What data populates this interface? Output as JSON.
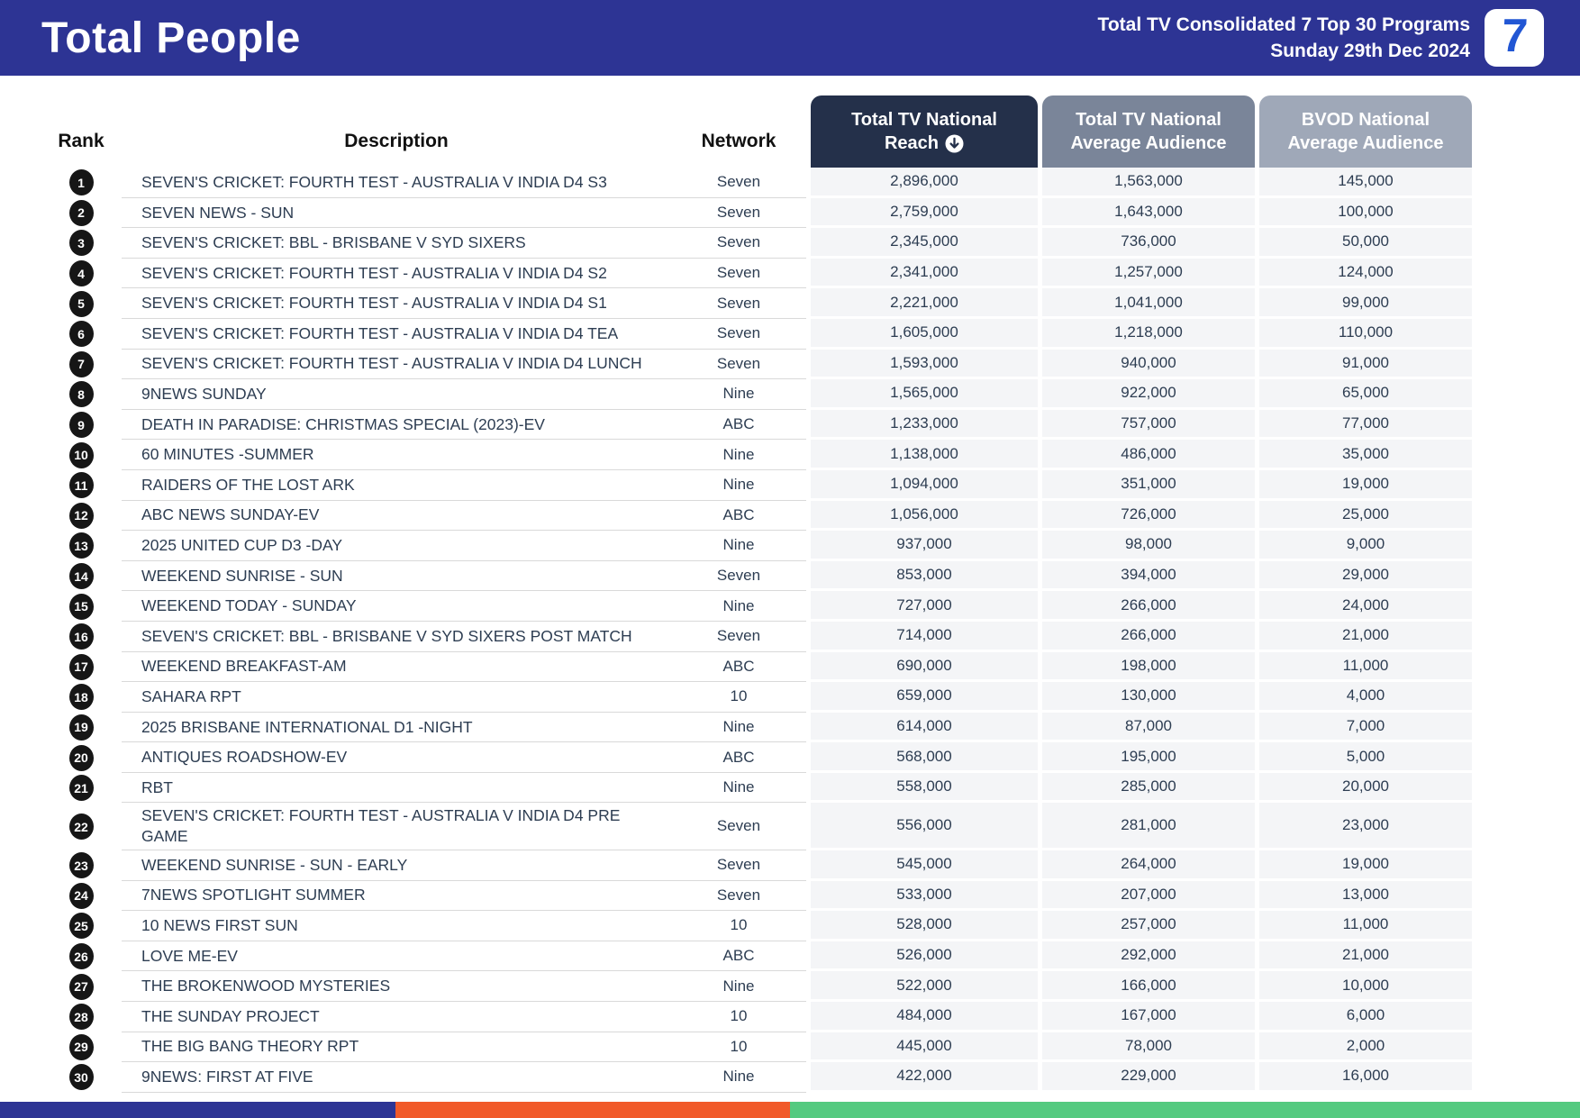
{
  "header": {
    "title": "Total People",
    "report_line1": "Total TV Consolidated 7 Top 30 Programs",
    "report_line2": "Sunday 29th Dec 2024",
    "logo_text": "7"
  },
  "colors": {
    "topbar": "#2d3494",
    "reach_header_bg": "#24304a",
    "tv_avg_header_bg": "#7a8599",
    "bvod_header_bg": "#9fa8b8",
    "row_text": "#2d3d52",
    "numeric_cell_bg": "#f4f5f7",
    "rank_badge_bg": "#161616",
    "logo_seven_blue": "#2156d4"
  },
  "table": {
    "plain_headers": {
      "rank": "Rank",
      "description": "Description",
      "network": "Network"
    },
    "value_headers": {
      "reach": {
        "line1": "Total TV National",
        "line2": "Reach",
        "sorted": "descending"
      },
      "tv_avg": {
        "line1": "Total TV National",
        "line2": "Average Audience"
      },
      "bvod": {
        "line1": "BVOD National",
        "line2": "Average Audience"
      }
    },
    "rows": [
      {
        "rank": "1",
        "description": "SEVEN'S CRICKET: FOURTH TEST - AUSTRALIA V INDIA D4 S3",
        "network": "Seven",
        "reach": "2,896,000",
        "tv_avg": "1,563,000",
        "bvod": "145,000"
      },
      {
        "rank": "2",
        "description": "SEVEN NEWS - SUN",
        "network": "Seven",
        "reach": "2,759,000",
        "tv_avg": "1,643,000",
        "bvod": "100,000"
      },
      {
        "rank": "3",
        "description": "SEVEN'S CRICKET: BBL - BRISBANE V SYD SIXERS",
        "network": "Seven",
        "reach": "2,345,000",
        "tv_avg": "736,000",
        "bvod": "50,000"
      },
      {
        "rank": "4",
        "description": "SEVEN'S CRICKET: FOURTH TEST - AUSTRALIA V INDIA D4 S2",
        "network": "Seven",
        "reach": "2,341,000",
        "tv_avg": "1,257,000",
        "bvod": "124,000"
      },
      {
        "rank": "5",
        "description": "SEVEN'S CRICKET: FOURTH TEST - AUSTRALIA V INDIA D4 S1",
        "network": "Seven",
        "reach": "2,221,000",
        "tv_avg": "1,041,000",
        "bvod": "99,000"
      },
      {
        "rank": "6",
        "description": "SEVEN'S CRICKET: FOURTH TEST - AUSTRALIA V INDIA D4 TEA",
        "network": "Seven",
        "reach": "1,605,000",
        "tv_avg": "1,218,000",
        "bvod": "110,000"
      },
      {
        "rank": "7",
        "description": "SEVEN'S CRICKET: FOURTH TEST - AUSTRALIA V INDIA D4 LUNCH",
        "network": "Seven",
        "reach": "1,593,000",
        "tv_avg": "940,000",
        "bvod": "91,000"
      },
      {
        "rank": "8",
        "description": "9NEWS SUNDAY",
        "network": "Nine",
        "reach": "1,565,000",
        "tv_avg": "922,000",
        "bvod": "65,000"
      },
      {
        "rank": "9",
        "description": "DEATH IN PARADISE: CHRISTMAS SPECIAL (2023)-EV",
        "network": "ABC",
        "reach": "1,233,000",
        "tv_avg": "757,000",
        "bvod": "77,000"
      },
      {
        "rank": "10",
        "description": "60 MINUTES -SUMMER",
        "network": "Nine",
        "reach": "1,138,000",
        "tv_avg": "486,000",
        "bvod": "35,000"
      },
      {
        "rank": "11",
        "description": "RAIDERS OF THE LOST ARK",
        "network": "Nine",
        "reach": "1,094,000",
        "tv_avg": "351,000",
        "bvod": "19,000"
      },
      {
        "rank": "12",
        "description": "ABC NEWS SUNDAY-EV",
        "network": "ABC",
        "reach": "1,056,000",
        "tv_avg": "726,000",
        "bvod": "25,000"
      },
      {
        "rank": "13",
        "description": "2025 UNITED CUP D3 -DAY",
        "network": "Nine",
        "reach": "937,000",
        "tv_avg": "98,000",
        "bvod": "9,000"
      },
      {
        "rank": "14",
        "description": "WEEKEND SUNRISE - SUN",
        "network": "Seven",
        "reach": "853,000",
        "tv_avg": "394,000",
        "bvod": "29,000"
      },
      {
        "rank": "15",
        "description": "WEEKEND TODAY - SUNDAY",
        "network": "Nine",
        "reach": "727,000",
        "tv_avg": "266,000",
        "bvod": "24,000"
      },
      {
        "rank": "16",
        "description": "SEVEN'S CRICKET: BBL - BRISBANE V SYD SIXERS POST MATCH",
        "network": "Seven",
        "reach": "714,000",
        "tv_avg": "266,000",
        "bvod": "21,000"
      },
      {
        "rank": "17",
        "description": "WEEKEND BREAKFAST-AM",
        "network": "ABC",
        "reach": "690,000",
        "tv_avg": "198,000",
        "bvod": "11,000"
      },
      {
        "rank": "18",
        "description": "SAHARA RPT",
        "network": "10",
        "reach": "659,000",
        "tv_avg": "130,000",
        "bvod": "4,000"
      },
      {
        "rank": "19",
        "description": "2025 BRISBANE INTERNATIONAL D1 -NIGHT",
        "network": "Nine",
        "reach": "614,000",
        "tv_avg": "87,000",
        "bvod": "7,000"
      },
      {
        "rank": "20",
        "description": "ANTIQUES ROADSHOW-EV",
        "network": "ABC",
        "reach": "568,000",
        "tv_avg": "195,000",
        "bvod": "5,000"
      },
      {
        "rank": "21",
        "description": "RBT",
        "network": "Nine",
        "reach": "558,000",
        "tv_avg": "285,000",
        "bvod": "20,000"
      },
      {
        "rank": "22",
        "description": "SEVEN'S CRICKET: FOURTH TEST - AUSTRALIA V INDIA D4 PRE GAME",
        "network": "Seven",
        "reach": "556,000",
        "tv_avg": "281,000",
        "bvod": "23,000"
      },
      {
        "rank": "23",
        "description": "WEEKEND SUNRISE - SUN - EARLY",
        "network": "Seven",
        "reach": "545,000",
        "tv_avg": "264,000",
        "bvod": "19,000"
      },
      {
        "rank": "24",
        "description": "7NEWS SPOTLIGHT SUMMER",
        "network": "Seven",
        "reach": "533,000",
        "tv_avg": "207,000",
        "bvod": "13,000"
      },
      {
        "rank": "25",
        "description": "10 NEWS FIRST SUN",
        "network": "10",
        "reach": "528,000",
        "tv_avg": "257,000",
        "bvod": "11,000"
      },
      {
        "rank": "26",
        "description": "LOVE ME-EV",
        "network": "ABC",
        "reach": "526,000",
        "tv_avg": "292,000",
        "bvod": "21,000"
      },
      {
        "rank": "27",
        "description": "THE BROKENWOOD MYSTERIES",
        "network": "Nine",
        "reach": "522,000",
        "tv_avg": "166,000",
        "bvod": "10,000"
      },
      {
        "rank": "28",
        "description": "THE SUNDAY PROJECT",
        "network": "10",
        "reach": "484,000",
        "tv_avg": "167,000",
        "bvod": "6,000"
      },
      {
        "rank": "29",
        "description": "THE BIG BANG THEORY RPT",
        "network": "10",
        "reach": "445,000",
        "tv_avg": "78,000",
        "bvod": "2,000"
      },
      {
        "rank": "30",
        "description": "9NEWS: FIRST AT FIVE",
        "network": "Nine",
        "reach": "422,000",
        "tv_avg": "229,000",
        "bvod": "16,000"
      }
    ]
  },
  "footer": {
    "segments": [
      {
        "color": "#2d3494",
        "width": "25%"
      },
      {
        "color": "#f15a29",
        "width": "25%"
      },
      {
        "color": "#54ca80",
        "width": "50%"
      }
    ]
  }
}
